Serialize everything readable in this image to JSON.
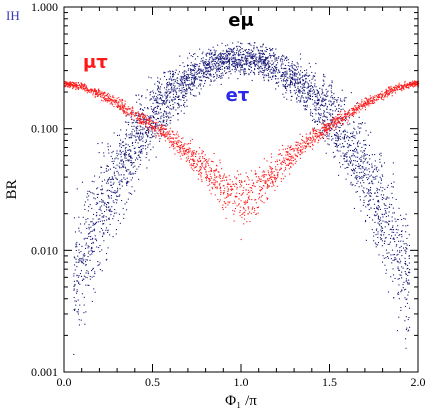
{
  "chart_data": {
    "type": "scatter",
    "corner_tag": "IH",
    "xlabel": "Φ₁ /π",
    "ylabel": "BR",
    "xlim": [
      0,
      2
    ],
    "ylim": [
      0.001,
      1
    ],
    "yscale": "log",
    "x_ticks": [
      "0.0",
      "0.5",
      "1.0",
      "1.5",
      "2.0"
    ],
    "y_ticks": [
      "0.001",
      "0.010",
      "0.100",
      "1.000"
    ],
    "grid": false,
    "series": [
      {
        "name": "eμ",
        "color": "#1a1a7a",
        "x": [
          0.05,
          0.1,
          0.2,
          0.3,
          0.4,
          0.5,
          0.6,
          0.7,
          0.8,
          0.9,
          1.0,
          1.1,
          1.2,
          1.3,
          1.4,
          1.5,
          1.6,
          1.7,
          1.8,
          1.9,
          1.95
        ],
        "y_low": [
          0.001,
          0.0013,
          0.004,
          0.011,
          0.026,
          0.05,
          0.09,
          0.14,
          0.19,
          0.23,
          0.25,
          0.23,
          0.19,
          0.14,
          0.09,
          0.05,
          0.026,
          0.011,
          0.004,
          0.0013,
          0.001
        ],
        "y_high": [
          0.03,
          0.05,
          0.1,
          0.17,
          0.24,
          0.32,
          0.4,
          0.47,
          0.53,
          0.57,
          0.58,
          0.57,
          0.53,
          0.47,
          0.4,
          0.32,
          0.24,
          0.17,
          0.1,
          0.05,
          0.03
        ]
      },
      {
        "name": "eτ",
        "color": "#1a1a7a",
        "x": [
          0.05,
          0.1,
          0.2,
          0.3,
          0.4,
          0.5,
          0.6,
          0.7,
          0.8,
          0.9,
          1.0,
          1.1,
          1.2,
          1.3,
          1.4,
          1.5,
          1.6,
          1.7,
          1.8,
          1.9,
          1.95
        ],
        "y_low": [
          0.001,
          0.0013,
          0.004,
          0.011,
          0.026,
          0.05,
          0.09,
          0.14,
          0.19,
          0.23,
          0.25,
          0.23,
          0.19,
          0.14,
          0.09,
          0.05,
          0.026,
          0.011,
          0.004,
          0.0013,
          0.001
        ],
        "y_high": [
          0.03,
          0.05,
          0.1,
          0.17,
          0.24,
          0.32,
          0.4,
          0.47,
          0.53,
          0.57,
          0.58,
          0.57,
          0.53,
          0.47,
          0.4,
          0.32,
          0.24,
          0.17,
          0.1,
          0.05,
          0.03
        ]
      },
      {
        "name": "μτ",
        "color": "#ff1a1a",
        "x": [
          0.0,
          0.1,
          0.2,
          0.3,
          0.4,
          0.5,
          0.6,
          0.7,
          0.8,
          0.9,
          1.0,
          1.1,
          1.2,
          1.3,
          1.4,
          1.5,
          1.6,
          1.7,
          1.8,
          1.9,
          2.0
        ],
        "y_low": [
          0.22,
          0.2,
          0.17,
          0.14,
          0.11,
          0.085,
          0.065,
          0.045,
          0.028,
          0.017,
          0.011,
          0.017,
          0.028,
          0.045,
          0.065,
          0.085,
          0.11,
          0.14,
          0.17,
          0.2,
          0.22
        ],
        "y_high": [
          0.26,
          0.25,
          0.22,
          0.19,
          0.16,
          0.13,
          0.11,
          0.09,
          0.075,
          0.063,
          0.055,
          0.063,
          0.075,
          0.09,
          0.11,
          0.13,
          0.16,
          0.19,
          0.22,
          0.25,
          0.26
        ]
      }
    ]
  }
}
